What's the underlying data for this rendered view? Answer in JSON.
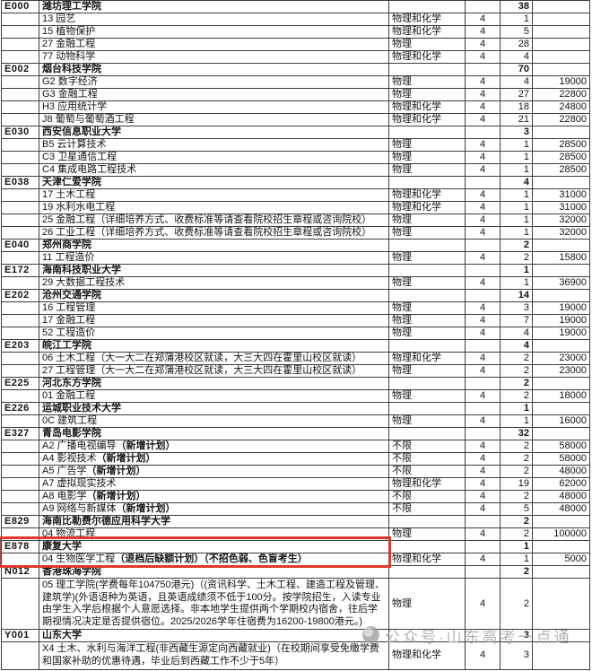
{
  "watermark": {
    "text": "公众号·山东高考一点通",
    "color": "#a8a8a8"
  },
  "highlight": {
    "color": "#e2382b",
    "section_code": "E878"
  },
  "table": {
    "columns": [
      "代码",
      "院校及专业名称",
      "选科要求",
      "学制",
      "计划数",
      "学费"
    ],
    "sections": [
      {
        "code": "E000",
        "school": "潍坊理工学院",
        "total": "38",
        "majors": [
          {
            "name": "13 园艺",
            "subject": "物理和化学",
            "years": "4",
            "count": "1",
            "fee": ""
          },
          {
            "name": "15 植物保护",
            "subject": "物理和化学",
            "years": "4",
            "count": "5",
            "fee": ""
          },
          {
            "name": "27 金融工程",
            "subject": "物理",
            "years": "4",
            "count": "28",
            "fee": ""
          },
          {
            "name": "77 动物科学",
            "subject": "物理和化学",
            "years": "4",
            "count": "4",
            "fee": ""
          }
        ]
      },
      {
        "code": "E002",
        "school": "烟台科技学院",
        "total": "70",
        "majors": [
          {
            "name": "G2 数字经济",
            "subject": "物理",
            "years": "4",
            "count": "4",
            "fee": "19000"
          },
          {
            "name": "G3 金融工程",
            "subject": "物理",
            "years": "4",
            "count": "27",
            "fee": "22800"
          },
          {
            "name": "H3 应用统计学",
            "subject": "物理和化学",
            "years": "4",
            "count": "18",
            "fee": "24800"
          },
          {
            "name": "J8 葡萄与葡萄酒工程",
            "subject": "物理和化学",
            "years": "4",
            "count": "21",
            "fee": "22800"
          }
        ]
      },
      {
        "code": "E030",
        "school": "西安信息职业大学",
        "total": "3",
        "majors": [
          {
            "name": "B5 云计算技术",
            "subject": "物理",
            "years": "4",
            "count": "1",
            "fee": "28500"
          },
          {
            "name": "C3 卫星通信工程",
            "subject": "物理",
            "years": "4",
            "count": "1",
            "fee": "28500"
          },
          {
            "name": "C4 集成电路工程技术",
            "subject": "物理",
            "years": "4",
            "count": "1",
            "fee": "28500"
          }
        ]
      },
      {
        "code": "E038",
        "school": "天津仁爱学院",
        "total": "4",
        "majors": [
          {
            "name": "17 土木工程",
            "subject": "物理和化学",
            "years": "4",
            "count": "1",
            "fee": "31000"
          },
          {
            "name": "19 水利水电工程",
            "subject": "物理和化学",
            "years": "4",
            "count": "1",
            "fee": "31000"
          },
          {
            "name": "25 金融工程（详细培养方式、收费标准等请查看院校招生章程或咨询院校）",
            "subject": "物理",
            "years": "4",
            "count": "1",
            "fee": "32000"
          },
          {
            "name": "26 工业工程（详细培养方式、收费标准等请查看院校招生章程或咨询院校）",
            "subject": "物理",
            "years": "4",
            "count": "1",
            "fee": "32000"
          }
        ]
      },
      {
        "code": "E040",
        "school": "郑州商学院",
        "total": "2",
        "majors": [
          {
            "name": "11 工程造价",
            "subject": "物理",
            "years": "4",
            "count": "2",
            "fee": "15800"
          }
        ]
      },
      {
        "code": "E172",
        "school": "海南科技职业大学",
        "total": "1",
        "majors": [
          {
            "name": "29 大数据工程技术",
            "subject": "物理",
            "years": "4",
            "count": "1",
            "fee": "36900"
          }
        ]
      },
      {
        "code": "E202",
        "school": "沧州交通学院",
        "total": "14",
        "majors": [
          {
            "name": "16 工程管理",
            "subject": "物理",
            "years": "4",
            "count": "3",
            "fee": "19000"
          },
          {
            "name": "17 金融工程",
            "subject": "物理",
            "years": "4",
            "count": "7",
            "fee": "19000"
          },
          {
            "name": "52 工程造价",
            "subject": "物理",
            "years": "4",
            "count": "4",
            "fee": "19000"
          }
        ]
      },
      {
        "code": "E203",
        "school": "皖江工学院",
        "total": "4",
        "majors": [
          {
            "name": "06 土木工程（大一大二在郑蒲港校区就读，大三大四在霍里山校区就读）",
            "subject": "物理和化学",
            "years": "4",
            "count": "2",
            "fee": "23000"
          },
          {
            "name": "27 工程管理（大一大二在郑蒲港校区就读，大三大四在霍里山校区就读）",
            "subject": "物理",
            "years": "4",
            "count": "2",
            "fee": "23000"
          }
        ]
      },
      {
        "code": "E225",
        "school": "河北东方学院",
        "total": "2",
        "majors": [
          {
            "name": "01 金融工程",
            "subject": "物理",
            "years": "4",
            "count": "2",
            "fee": "18000"
          }
        ]
      },
      {
        "code": "E226",
        "school": "运城职业技术大学",
        "total": "1",
        "majors": [
          {
            "name": "0C 建筑工程",
            "subject": "物理",
            "years": "4",
            "count": "1",
            "fee": "16000"
          }
        ]
      },
      {
        "code": "E327",
        "school": "青岛电影学院",
        "total": "32",
        "majors": [
          {
            "name": "A2 广播电视编导",
            "name_bold": "（新增计划）",
            "subject": "不限",
            "years": "4",
            "count": "2",
            "fee": "58000"
          },
          {
            "name": "A4 影视技术",
            "name_bold": "（新增计划）",
            "subject": "不限",
            "years": "4",
            "count": "2",
            "fee": "58000"
          },
          {
            "name": "A5 广告学",
            "name_bold": "（新增计划）",
            "subject": "不限",
            "years": "4",
            "count": "2",
            "fee": "48000"
          },
          {
            "name": "A7 虚拟现实技术",
            "subject": "物理和化学",
            "years": "4",
            "count": "19",
            "fee": "62000"
          },
          {
            "name": "A8 电影学",
            "name_bold": "（新增计划）",
            "subject": "不限",
            "years": "4",
            "count": "2",
            "fee": "48000"
          },
          {
            "name": "A9 网络与新媒体",
            "name_bold": "（新增计划）",
            "subject": "不限",
            "years": "4",
            "count": "5",
            "fee": "48000"
          }
        ]
      },
      {
        "code": "E829",
        "school": "海南比勒费尔德应用科学大学",
        "total": "2",
        "majors": [
          {
            "name": "04 物流工程",
            "subject": "物理",
            "years": "4",
            "count": "2",
            "fee": "100000"
          }
        ]
      },
      {
        "code": "E878",
        "school": "康复大学",
        "total": "1",
        "majors": [
          {
            "name": "04 生物医学工程",
            "name_bold": "（退档后缺额计划）（不招色弱、色盲考生）",
            "subject": "物理和化学",
            "years": "4",
            "count": "1",
            "fee": "5000"
          }
        ]
      },
      {
        "code": "N012",
        "school": "香港珠海学院",
        "total": "2",
        "majors": [
          {
            "name": "05 理工学院(学费每年104750港元)（(资讯科学、土木工程、建造工程及管理、建筑学)(外语语种为英语，且英语成绩须不低于100分。按学院招生，入读专业由学生入学后根据个人意愿选择。非本地学生提供两个学期校内宿舍，往后学期视情况决定是否提供宿位。2025/2026学年住宿费为16200-19800港元。)",
            "subject": "物理",
            "years": "4",
            "count": "2",
            "fee": "",
            "wrap": true
          }
        ]
      },
      {
        "code": "Y001",
        "school": "山东大学",
        "total": "3",
        "majors": [
          {
            "name": "X4 土木、水利与海洋工程(非西藏生源定向西藏就业)（在校期间享受免缴学费和国家补助的优惠待遇，毕业后到西藏工作不少于5年）",
            "subject": "物理和化学",
            "years": "4",
            "count": "3",
            "fee": "",
            "wrap": true
          }
        ]
      }
    ]
  }
}
